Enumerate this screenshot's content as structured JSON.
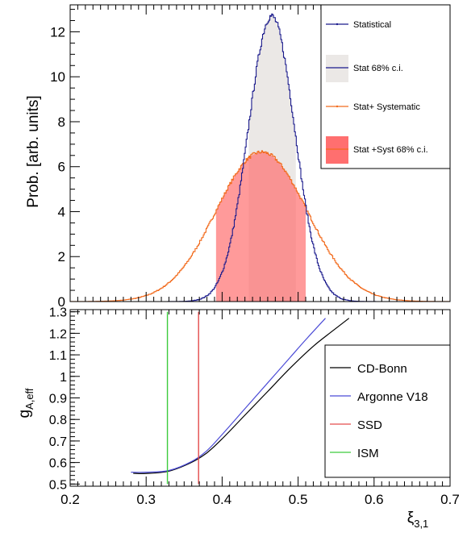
{
  "chart_data": [
    {
      "type": "area",
      "ylabel": "Prob. [arb. units]",
      "xlim": [
        0.2,
        0.7
      ],
      "ylim": [
        0,
        13.2
      ],
      "yticks": [
        0,
        2,
        4,
        6,
        8,
        10,
        12
      ],
      "legend_position": "top-right",
      "colors": {
        "statistical": "#1a1a8c",
        "ci_stat": "#ebe8e6",
        "systematic": "#f26b1d",
        "ci_syst": "#ff6f6f"
      },
      "series": [
        {
          "name": "Statistical",
          "kind": "gaussian",
          "mean": 0.465,
          "sigma": 0.0305,
          "peak": 12.7
        },
        {
          "name": "Stat 68% c.i.",
          "kind": "band",
          "x_range": [
            0.435,
            0.497
          ]
        },
        {
          "name": "Stat+ Systematic",
          "kind": "gaussian",
          "mean": 0.452,
          "sigma": 0.06,
          "peak": 6.65
        },
        {
          "name": "Stat +Syst 68% c.i.",
          "kind": "band",
          "x_range": [
            0.392,
            0.51
          ]
        }
      ]
    },
    {
      "type": "line",
      "xlabel": "ξ3,1",
      "xlabel_main": "ξ",
      "xlabel_sub": "3,1",
      "ylabel_main": "g",
      "ylabel_sub": "A,eff",
      "xlim": [
        0.2,
        0.7
      ],
      "ylim": [
        0.49,
        1.31
      ],
      "xticks": [
        "0.2",
        "0.3",
        "0.4",
        "0.5",
        "0.6",
        "0.7"
      ],
      "yticks": [
        "0.5",
        "0.6",
        "0.7",
        "0.8",
        "0.9",
        "1",
        "1.1",
        "1.2",
        "1.3"
      ],
      "legend_position": "right",
      "series": [
        {
          "name": "CD-Bonn",
          "color": "#000000",
          "x": [
            0.283,
            0.3,
            0.33,
            0.36,
            0.38,
            0.4,
            0.43,
            0.46,
            0.49,
            0.52,
            0.545,
            0.567
          ],
          "y": [
            0.55,
            0.549,
            0.56,
            0.601,
            0.645,
            0.71,
            0.82,
            0.93,
            1.04,
            1.14,
            1.21,
            1.27
          ]
        },
        {
          "name": "Argonne V18",
          "color": "#4b4bd6",
          "x": [
            0.28,
            0.3,
            0.33,
            0.36,
            0.38,
            0.4,
            0.43,
            0.46,
            0.49,
            0.51,
            0.536
          ],
          "y": [
            0.555,
            0.555,
            0.563,
            0.605,
            0.655,
            0.73,
            0.85,
            0.97,
            1.09,
            1.17,
            1.27
          ]
        },
        {
          "name": "SSD",
          "color": "#e34c4c",
          "vline": 0.369,
          "yrange": [
            0.5,
            1.3
          ]
        },
        {
          "name": "ISM",
          "color": "#3ccc3c",
          "vline": 0.328,
          "yrange": [
            0.5,
            1.3
          ]
        }
      ]
    }
  ]
}
